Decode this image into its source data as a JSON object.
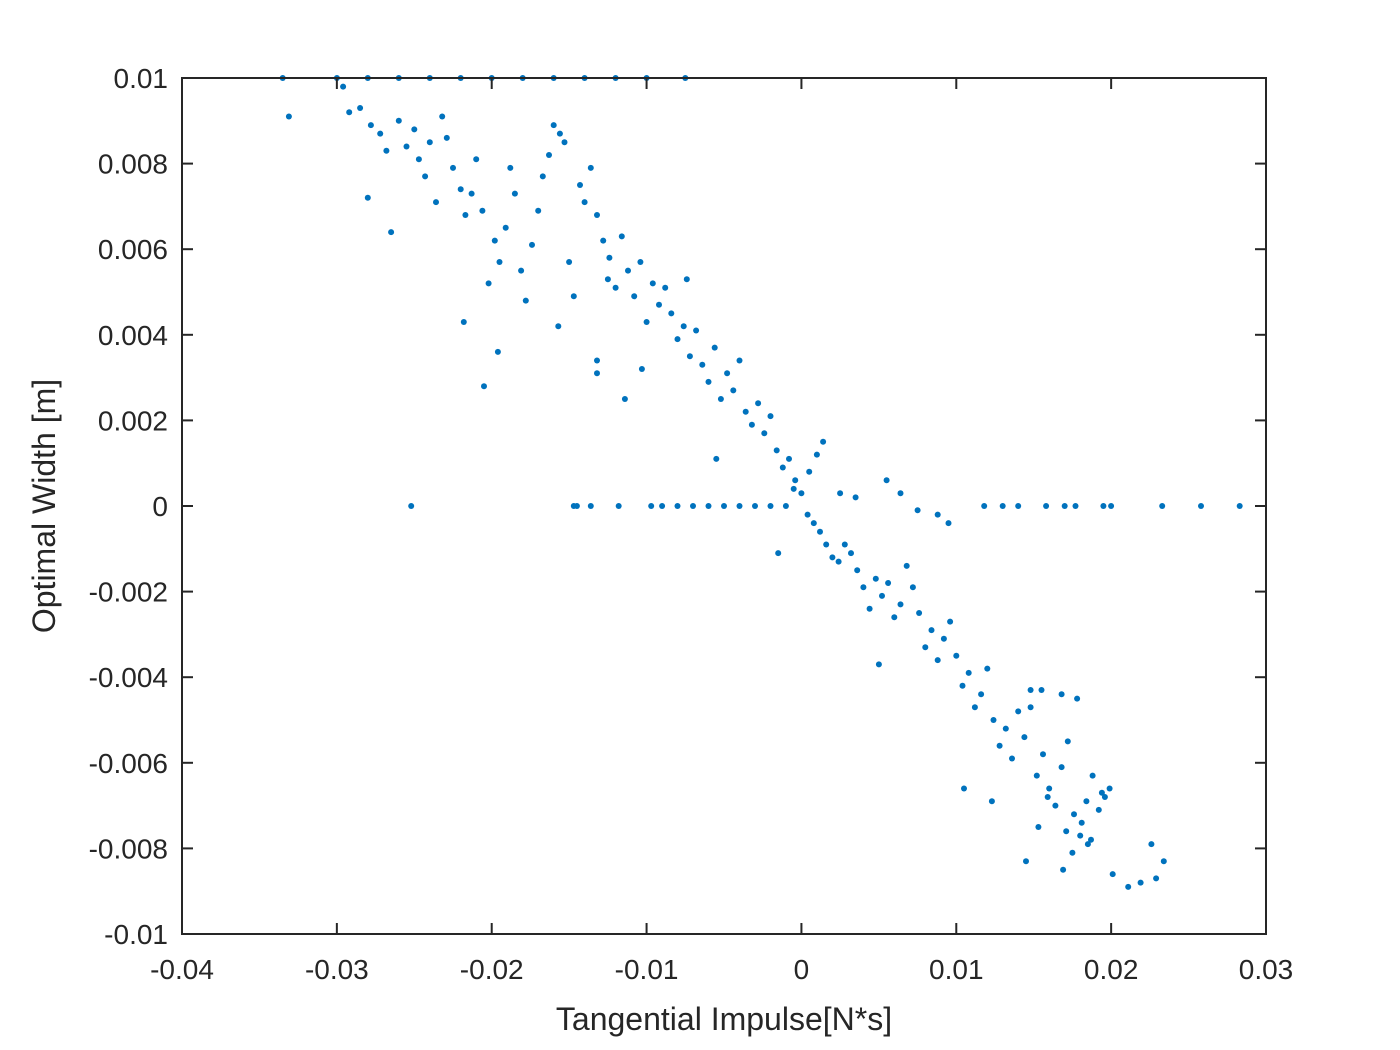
{
  "chart_data": {
    "type": "scatter",
    "xlabel": "Tangential Impulse[N*s]",
    "ylabel": "Optimal Width [m]",
    "xlim": [
      -0.04,
      0.03
    ],
    "ylim": [
      -0.01,
      0.01
    ],
    "xticks": [
      "-0.04",
      "-0.03",
      "-0.02",
      "-0.01",
      "0",
      "0.01",
      "0.02",
      "0.03"
    ],
    "yticks": [
      "-0.01",
      "-0.008",
      "-0.006",
      "-0.004",
      "-0.002",
      "0",
      "0.002",
      "0.004",
      "0.006",
      "0.008",
      "0.01"
    ],
    "grid": false,
    "marker_color": "#0072BD",
    "axes_color": "#262626",
    "series": [
      {
        "points": [
          [
            -0.0335,
            0.01
          ],
          [
            -0.0331,
            0.0091
          ],
          [
            -0.0296,
            0.0098
          ],
          [
            -0.0292,
            0.0092
          ],
          [
            -0.028,
            0.0072
          ],
          [
            -0.0265,
            0.0064
          ],
          [
            -0.0252,
            0.0
          ],
          [
            -0.0218,
            0.0043
          ],
          [
            -0.0205,
            0.0028
          ],
          [
            -0.0196,
            0.0036
          ],
          [
            -0.0157,
            0.0042
          ],
          [
            -0.0147,
            0.0
          ],
          [
            -0.0145,
            0.0
          ],
          [
            -0.0132,
            0.0034
          ],
          [
            -0.0132,
            0.0031
          ],
          [
            -0.0125,
            0.0053
          ],
          [
            -0.0114,
            0.0025
          ],
          [
            -0.0103,
            0.0032
          ],
          [
            -0.0074,
            0.0053
          ],
          [
            -0.0055,
            0.0011
          ],
          [
            -0.0015,
            -0.0011
          ],
          [
            0.005,
            -0.0037
          ],
          [
            0.0105,
            -0.0066
          ],
          [
            0.0123,
            -0.0069
          ],
          [
            0.0145,
            -0.0083
          ],
          [
            0.0169,
            -0.0085
          ],
          [
            0.0201,
            -0.0086
          ],
          [
            0.0211,
            -0.0089
          ],
          [
            0.0219,
            -0.0088
          ],
          [
            0.0226,
            -0.0079
          ],
          [
            0.0229,
            -0.0087
          ],
          [
            0.0234,
            -0.0083
          ],
          [
            0.0194,
            -0.0067
          ],
          [
            0.0199,
            -0.0066
          ],
          [
            0.0181,
            -0.0074
          ],
          [
            0.0185,
            -0.0079
          ],
          [
            0.0175,
            -0.0081
          ],
          [
            0.0178,
            -0.0045
          ],
          [
            0.0168,
            -0.0044
          ],
          [
            0.0155,
            -0.0043
          ],
          [
            0.0148,
            -0.0043
          ],
          [
            0.0153,
            -0.0075
          ],
          [
            0.0195,
            0.0
          ],
          [
            0.02,
            0.0
          ],
          [
            0.0233,
            0.0
          ],
          [
            0.0258,
            0.0
          ],
          [
            0.0283,
            0.0
          ],
          [
            0.0177,
            0.0
          ],
          [
            0.017,
            0.0
          ],
          [
            0.0158,
            0.0
          ],
          [
            0.014,
            0.0
          ],
          [
            0.013,
            0.0
          ],
          [
            0.0118,
            0.0
          ],
          [
            0.0095,
            -0.0004
          ],
          [
            0.0088,
            -0.0002
          ],
          [
            0.0075,
            -0.0001
          ],
          [
            0.0064,
            0.0003
          ],
          [
            0.0055,
            0.0006
          ],
          [
            0.0035,
            0.0002
          ],
          [
            0.0025,
            0.0003
          ],
          [
            0.0014,
            0.0015
          ],
          [
            0.001,
            0.0012
          ],
          [
            0.0005,
            0.0008
          ],
          [
            -0.0005,
            0.0004
          ],
          [
            -0.001,
            0.0
          ],
          [
            -0.002,
            0.0
          ],
          [
            -0.003,
            0.0
          ],
          [
            -0.004,
            0.0
          ],
          [
            -0.005,
            0.0
          ],
          [
            -0.006,
            0.0
          ],
          [
            -0.007,
            0.0
          ],
          [
            -0.008,
            0.0
          ],
          [
            -0.009,
            0.0
          ],
          [
            -0.0097,
            0.0
          ],
          [
            -0.0118,
            0.0
          ],
          [
            -0.0136,
            0.0
          ],
          [
            -0.0075,
            0.01
          ],
          [
            -0.01,
            0.01
          ],
          [
            -0.012,
            0.01
          ],
          [
            -0.014,
            0.01
          ],
          [
            -0.016,
            0.01
          ],
          [
            -0.018,
            0.01
          ],
          [
            -0.02,
            0.01
          ],
          [
            -0.022,
            0.01
          ],
          [
            -0.024,
            0.01
          ],
          [
            -0.026,
            0.01
          ],
          [
            -0.028,
            0.01
          ],
          [
            -0.03,
            0.01
          ],
          [
            -0.0285,
            0.0093
          ],
          [
            -0.0278,
            0.0089
          ],
          [
            -0.0272,
            0.0087
          ],
          [
            -0.0268,
            0.0083
          ],
          [
            -0.026,
            0.009
          ],
          [
            -0.0255,
            0.0084
          ],
          [
            -0.025,
            0.0088
          ],
          [
            -0.0247,
            0.0081
          ],
          [
            -0.0243,
            0.0077
          ],
          [
            -0.024,
            0.0085
          ],
          [
            -0.0236,
            0.0071
          ],
          [
            -0.0232,
            0.0091
          ],
          [
            -0.0229,
            0.0086
          ],
          [
            -0.0225,
            0.0079
          ],
          [
            -0.022,
            0.0074
          ],
          [
            -0.0217,
            0.0068
          ],
          [
            -0.0213,
            0.0073
          ],
          [
            -0.021,
            0.0081
          ],
          [
            -0.0206,
            0.0069
          ],
          [
            -0.0202,
            0.0052
          ],
          [
            -0.0198,
            0.0062
          ],
          [
            -0.0195,
            0.0057
          ],
          [
            -0.0191,
            0.0065
          ],
          [
            -0.0188,
            0.0079
          ],
          [
            -0.0185,
            0.0073
          ],
          [
            -0.0181,
            0.0055
          ],
          [
            -0.0178,
            0.0048
          ],
          [
            -0.0174,
            0.0061
          ],
          [
            -0.017,
            0.0069
          ],
          [
            -0.0167,
            0.0077
          ],
          [
            -0.0163,
            0.0082
          ],
          [
            -0.016,
            0.0089
          ],
          [
            -0.0156,
            0.0087
          ],
          [
            -0.0153,
            0.0085
          ],
          [
            -0.015,
            0.0057
          ],
          [
            -0.0147,
            0.0049
          ],
          [
            -0.0143,
            0.0075
          ],
          [
            -0.014,
            0.0071
          ],
          [
            -0.0136,
            0.0079
          ],
          [
            -0.0132,
            0.0068
          ],
          [
            -0.0128,
            0.0062
          ],
          [
            -0.0124,
            0.0058
          ],
          [
            -0.012,
            0.0051
          ],
          [
            -0.0116,
            0.0063
          ],
          [
            -0.0112,
            0.0055
          ],
          [
            -0.0108,
            0.0049
          ],
          [
            -0.0104,
            0.0057
          ],
          [
            -0.01,
            0.0043
          ],
          [
            -0.0096,
            0.0052
          ],
          [
            -0.0092,
            0.0047
          ],
          [
            -0.0088,
            0.0051
          ],
          [
            -0.0084,
            0.0045
          ],
          [
            -0.008,
            0.0039
          ],
          [
            -0.0076,
            0.0042
          ],
          [
            -0.0072,
            0.0035
          ],
          [
            -0.0068,
            0.0041
          ],
          [
            -0.0064,
            0.0033
          ],
          [
            -0.006,
            0.0029
          ],
          [
            -0.0056,
            0.0037
          ],
          [
            -0.0052,
            0.0025
          ],
          [
            -0.0048,
            0.0031
          ],
          [
            -0.0044,
            0.0027
          ],
          [
            -0.004,
            0.0034
          ],
          [
            -0.0036,
            0.0022
          ],
          [
            -0.0032,
            0.0019
          ],
          [
            -0.0028,
            0.0024
          ],
          [
            -0.0024,
            0.0017
          ],
          [
            -0.002,
            0.0021
          ],
          [
            -0.0016,
            0.0013
          ],
          [
            -0.0012,
            0.0009
          ],
          [
            -0.0008,
            0.0011
          ],
          [
            -0.0004,
            0.0006
          ],
          [
            0.0,
            0.0003
          ],
          [
            0.0004,
            -0.0002
          ],
          [
            0.0008,
            -0.0004
          ],
          [
            0.0012,
            -0.0006
          ],
          [
            0.0016,
            -0.0009
          ],
          [
            0.002,
            -0.0012
          ],
          [
            0.0024,
            -0.0013
          ],
          [
            0.0028,
            -0.0009
          ],
          [
            0.0032,
            -0.0011
          ],
          [
            0.0036,
            -0.0015
          ],
          [
            0.004,
            -0.0019
          ],
          [
            0.0044,
            -0.0024
          ],
          [
            0.0048,
            -0.0017
          ],
          [
            0.0052,
            -0.0021
          ],
          [
            0.0056,
            -0.0018
          ],
          [
            0.006,
            -0.0026
          ],
          [
            0.0064,
            -0.0023
          ],
          [
            0.0068,
            -0.0014
          ],
          [
            0.0072,
            -0.0019
          ],
          [
            0.0076,
            -0.0025
          ],
          [
            0.008,
            -0.0033
          ],
          [
            0.0084,
            -0.0029
          ],
          [
            0.0088,
            -0.0036
          ],
          [
            0.0092,
            -0.0031
          ],
          [
            0.0096,
            -0.0027
          ],
          [
            0.01,
            -0.0035
          ],
          [
            0.0104,
            -0.0042
          ],
          [
            0.0108,
            -0.0039
          ],
          [
            0.0112,
            -0.0047
          ],
          [
            0.0116,
            -0.0044
          ],
          [
            0.012,
            -0.0038
          ],
          [
            0.0124,
            -0.005
          ],
          [
            0.0128,
            -0.0056
          ],
          [
            0.0132,
            -0.0052
          ],
          [
            0.0136,
            -0.0059
          ],
          [
            0.014,
            -0.0048
          ],
          [
            0.0144,
            -0.0054
          ],
          [
            0.0148,
            -0.0047
          ],
          [
            0.0152,
            -0.0063
          ],
          [
            0.0156,
            -0.0058
          ],
          [
            0.016,
            -0.0066
          ],
          [
            0.0164,
            -0.007
          ],
          [
            0.0168,
            -0.0061
          ],
          [
            0.0172,
            -0.0055
          ],
          [
            0.0176,
            -0.0072
          ],
          [
            0.018,
            -0.0077
          ],
          [
            0.0184,
            -0.0069
          ],
          [
            0.0188,
            -0.0063
          ],
          [
            0.0192,
            -0.0071
          ],
          [
            0.0196,
            -0.0068
          ],
          [
            0.0171,
            -0.0076
          ],
          [
            0.0159,
            -0.0068
          ],
          [
            0.0187,
            -0.0078
          ]
        ]
      }
    ]
  }
}
